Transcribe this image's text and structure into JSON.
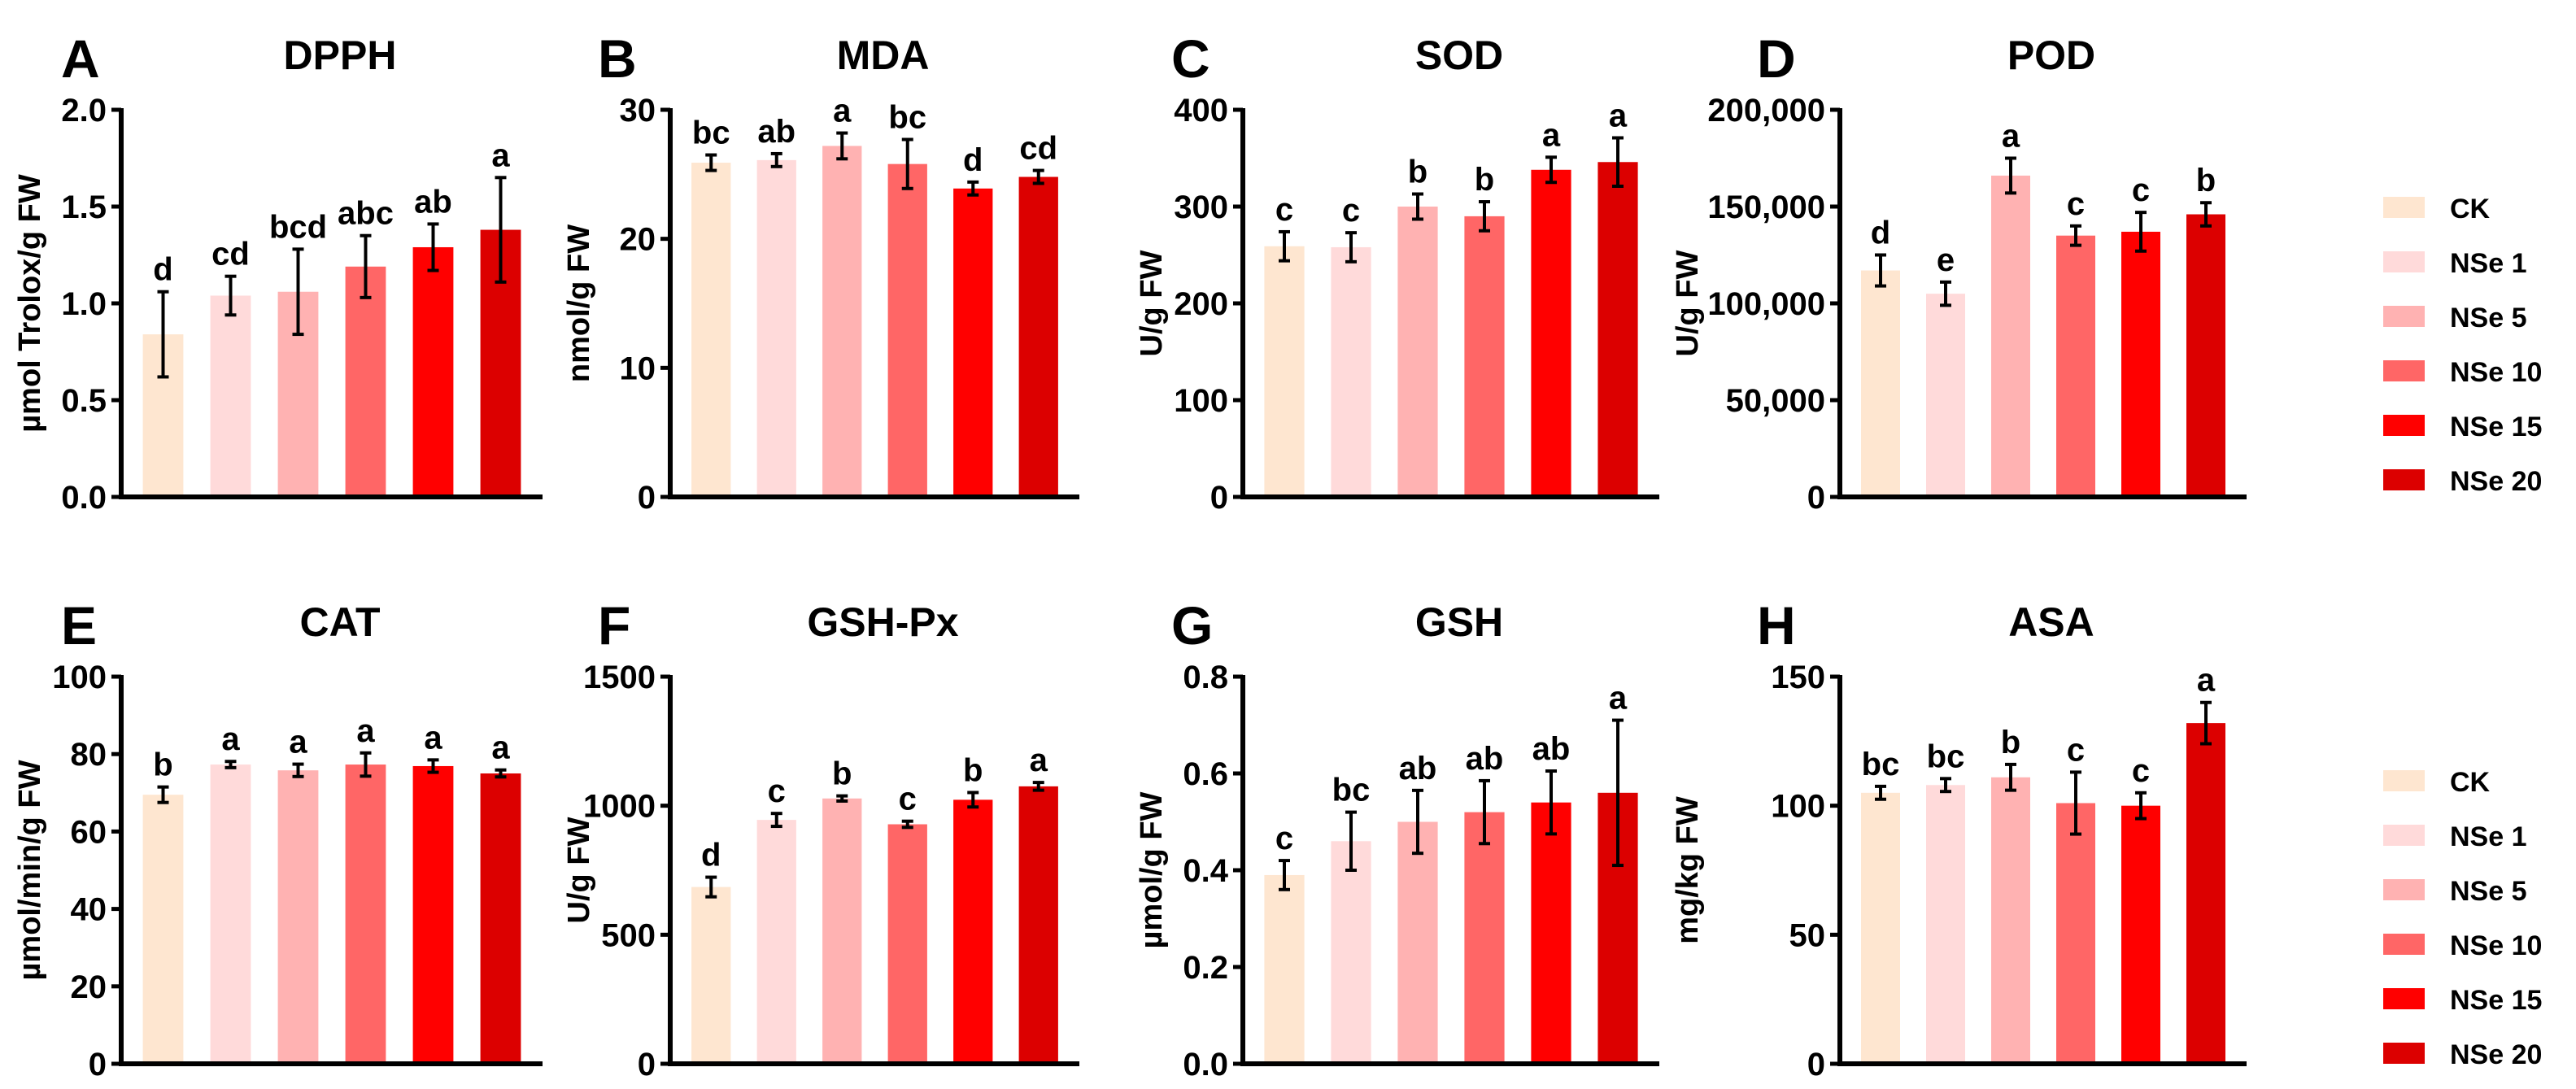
{
  "legend": [
    {
      "label": "CK",
      "color": "#FEE6D0"
    },
    {
      "label": "NSe 1",
      "color": "#FFDADA"
    },
    {
      "label": "NSe 5",
      "color": "#FFB2B2"
    },
    {
      "label": "NSe 10",
      "color": "#FF6666"
    },
    {
      "label": "NSe 15",
      "color": "#FF0000"
    },
    {
      "label": "NSe 20",
      "color": "#DC0000"
    }
  ],
  "chart_data": [
    {
      "type": "bar",
      "panel": "A",
      "title": "DPPH",
      "ylabel": "µmol Trolox/g FW",
      "ylim": [
        0,
        2.0
      ],
      "ticks": [
        0,
        0.5,
        1.0,
        1.5,
        2.0
      ],
      "tick_labels": [
        "0.0",
        "0.5",
        "1.0",
        "1.5",
        "2.0"
      ],
      "categories": [
        "CK",
        "NSe 1",
        "NSe 5",
        "NSe 10",
        "NSe 15",
        "NSe 20"
      ],
      "values": [
        0.84,
        1.04,
        1.06,
        1.19,
        1.29,
        1.38
      ],
      "errors": [
        0.22,
        0.1,
        0.22,
        0.16,
        0.12,
        0.27
      ],
      "letters": [
        "d",
        "cd",
        "bcd",
        "abc",
        "ab",
        "a"
      ]
    },
    {
      "type": "bar",
      "panel": "B",
      "title": "MDA",
      "ylabel": "nmol/g FW",
      "ylim": [
        0,
        30
      ],
      "ticks": [
        0,
        10,
        20,
        30
      ],
      "tick_labels": [
        "0",
        "10",
        "20",
        "30"
      ],
      "categories": [
        "CK",
        "NSe 1",
        "NSe 5",
        "NSe 10",
        "NSe 15",
        "NSe 20"
      ],
      "values": [
        25.9,
        26.1,
        27.2,
        25.8,
        23.9,
        24.8
      ],
      "errors": [
        0.6,
        0.5,
        1.0,
        1.9,
        0.5,
        0.5
      ],
      "letters": [
        "bc",
        "ab",
        "a",
        "bc",
        "d",
        "cd"
      ]
    },
    {
      "type": "bar",
      "panel": "C",
      "title": "SOD",
      "ylabel": "U/g FW",
      "ylim": [
        0,
        400
      ],
      "ticks": [
        0,
        100,
        200,
        300,
        400
      ],
      "tick_labels": [
        "0",
        "100",
        "200",
        "300",
        "400"
      ],
      "categories": [
        "CK",
        "NSe 1",
        "NSe 5",
        "NSe 10",
        "NSe 15",
        "NSe 20"
      ],
      "values": [
        259,
        258,
        300,
        290,
        338,
        346
      ],
      "errors": [
        15,
        15,
        13,
        15,
        13,
        25
      ],
      "letters": [
        "c",
        "c",
        "b",
        "b",
        "a",
        "a"
      ]
    },
    {
      "type": "bar",
      "panel": "D",
      "title": "POD",
      "ylabel": "U/g FW",
      "ylim": [
        0,
        200000
      ],
      "ticks": [
        0,
        50000,
        100000,
        150000,
        200000
      ],
      "tick_labels": [
        "0",
        "50,000",
        "100,000",
        "150,000",
        "200,000"
      ],
      "categories": [
        "CK",
        "NSe 1",
        "NSe 5",
        "NSe 10",
        "NSe 15",
        "NSe 20"
      ],
      "values": [
        117000,
        105000,
        166000,
        135000,
        137000,
        146000
      ],
      "errors": [
        8000,
        6000,
        9000,
        5000,
        10000,
        6000
      ],
      "letters": [
        "d",
        "e",
        "a",
        "c",
        "c",
        "b"
      ]
    },
    {
      "type": "bar",
      "panel": "E",
      "title": "CAT",
      "ylabel": "µmol/min/g FW",
      "ylim": [
        0,
        100
      ],
      "ticks": [
        0,
        20,
        40,
        60,
        80,
        100
      ],
      "tick_labels": [
        "0",
        "20",
        "40",
        "60",
        "80",
        "100"
      ],
      "categories": [
        "CK",
        "NSe 1",
        "NSe 5",
        "NSe 10",
        "NSe 15",
        "NSe 20"
      ],
      "values": [
        69.5,
        77.3,
        75.8,
        77.3,
        76.9,
        75.0
      ],
      "errors": [
        2.0,
        0.8,
        1.6,
        3.0,
        1.6,
        0.9
      ],
      "letters": [
        "b",
        "a",
        "a",
        "a",
        "a",
        "a"
      ]
    },
    {
      "type": "bar",
      "panel": "F",
      "title": "GSH-Px",
      "ylabel": "U/g FW",
      "ylim": [
        0,
        1500
      ],
      "ticks": [
        0,
        500,
        1000,
        1500
      ],
      "tick_labels": [
        "0",
        "500",
        "1000",
        "1500"
      ],
      "categories": [
        "CK",
        "NSe 1",
        "NSe 5",
        "NSe 10",
        "NSe 15",
        "NSe 20"
      ],
      "values": [
        685,
        945,
        1028,
        928,
        1023,
        1075
      ],
      "errors": [
        38,
        25,
        10,
        12,
        28,
        15
      ],
      "letters": [
        "d",
        "c",
        "b",
        "c",
        "b",
        "a"
      ]
    },
    {
      "type": "bar",
      "panel": "G",
      "title": "GSH",
      "ylabel": "µmol/g FW",
      "ylim": [
        0,
        0.8
      ],
      "ticks": [
        0,
        0.2,
        0.4,
        0.6,
        0.8
      ],
      "tick_labels": [
        "0.0",
        "0.2",
        "0.4",
        "0.6",
        "0.8"
      ],
      "categories": [
        "CK",
        "NSe 1",
        "NSe 5",
        "NSe 10",
        "NSe 15",
        "NSe 20"
      ],
      "values": [
        0.39,
        0.46,
        0.5,
        0.52,
        0.54,
        0.56
      ],
      "errors": [
        0.03,
        0.06,
        0.065,
        0.065,
        0.065,
        0.15
      ],
      "letters": [
        "c",
        "bc",
        "ab",
        "ab",
        "ab",
        "a"
      ]
    },
    {
      "type": "bar",
      "panel": "H",
      "title": "ASA",
      "ylabel": "mg/kg FW",
      "ylim": [
        0,
        150
      ],
      "ticks": [
        0,
        50,
        100,
        150
      ],
      "tick_labels": [
        "0",
        "50",
        "100",
        "150"
      ],
      "categories": [
        "CK",
        "NSe 1",
        "NSe 5",
        "NSe 10",
        "NSe 15",
        "NSe 20"
      ],
      "values": [
        105,
        108,
        111,
        101,
        100,
        132
      ],
      "errors": [
        2.5,
        2.5,
        5,
        12,
        5,
        8
      ],
      "letters": [
        "bc",
        "bc",
        "b",
        "c",
        "c",
        "a"
      ]
    }
  ]
}
